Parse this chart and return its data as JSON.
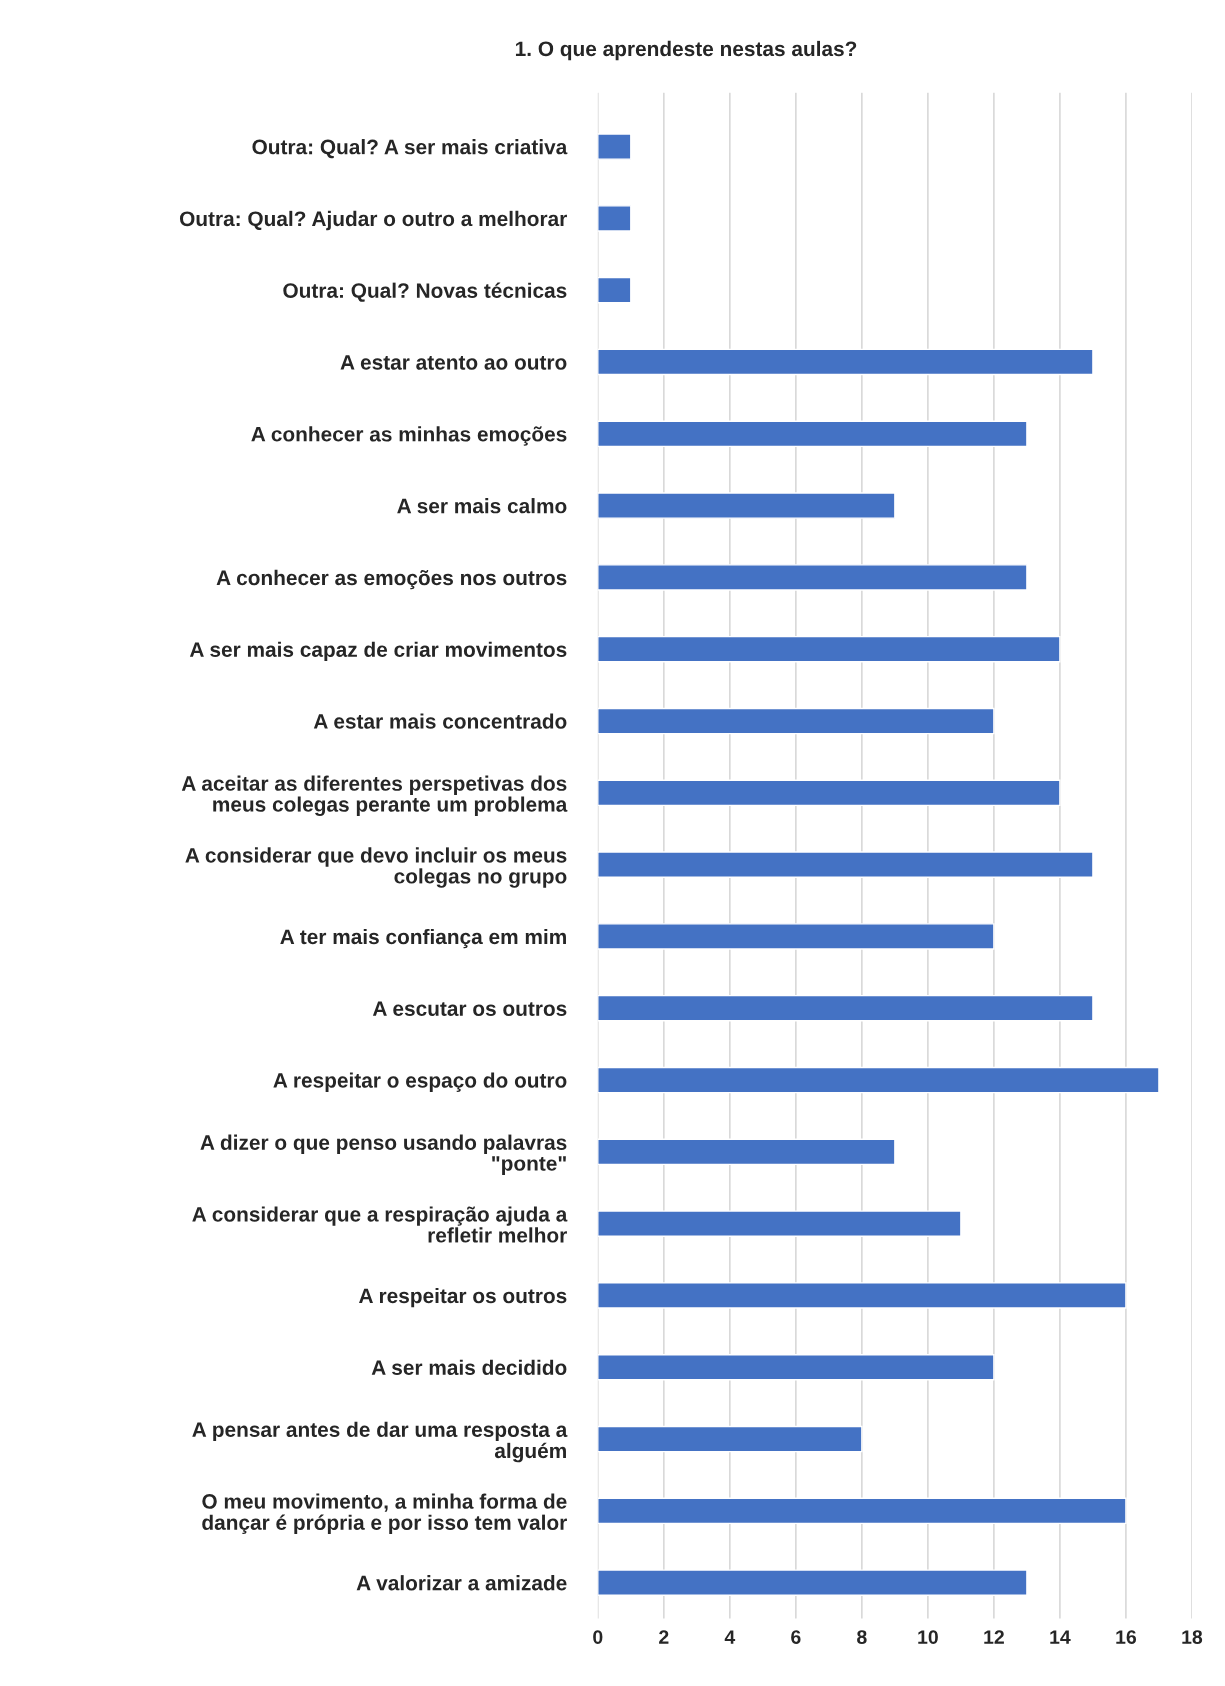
{
  "chart_data": {
    "type": "bar",
    "orientation": "horizontal",
    "title": "1. O que aprendeste nestas aulas?",
    "categories": [
      "Outra: Qual? A ser mais criativa",
      "Outra: Qual? Ajudar o outro a melhorar",
      "Outra: Qual? Novas técnicas",
      "A estar atento ao outro",
      "A conhecer as minhas emoções",
      "A ser mais calmo",
      "A conhecer as emoções nos outros",
      "A ser mais capaz de criar movimentos",
      "A estar mais concentrado",
      "A aceitar as diferentes perspetivas dos\nmeus colegas perante um problema",
      "A considerar que devo incluir os meus\ncolegas no grupo",
      "A ter mais confiança em mim",
      "A escutar os outros",
      "A respeitar o espaço do outro",
      "A dizer o que penso usando palavras\n\"ponte\"",
      "A considerar que a respiração ajuda a\nrefletir melhor",
      "A respeitar os outros",
      "A ser mais decidido",
      "A pensar antes de dar uma resposta a\nalguém",
      "O meu movimento, a minha forma de\ndançar é própria e por isso tem valor",
      "A valorizar a amizade"
    ],
    "values": [
      1,
      1,
      1,
      15,
      13,
      9,
      13,
      14,
      12,
      14,
      15,
      12,
      15,
      17,
      9,
      11,
      16,
      12,
      8,
      16,
      13
    ],
    "color": "#4472c4",
    "xlim": [
      0,
      18
    ],
    "xticks": [
      0,
      2,
      4,
      6,
      8,
      10,
      12,
      14,
      16,
      18
    ],
    "grid": "x"
  }
}
